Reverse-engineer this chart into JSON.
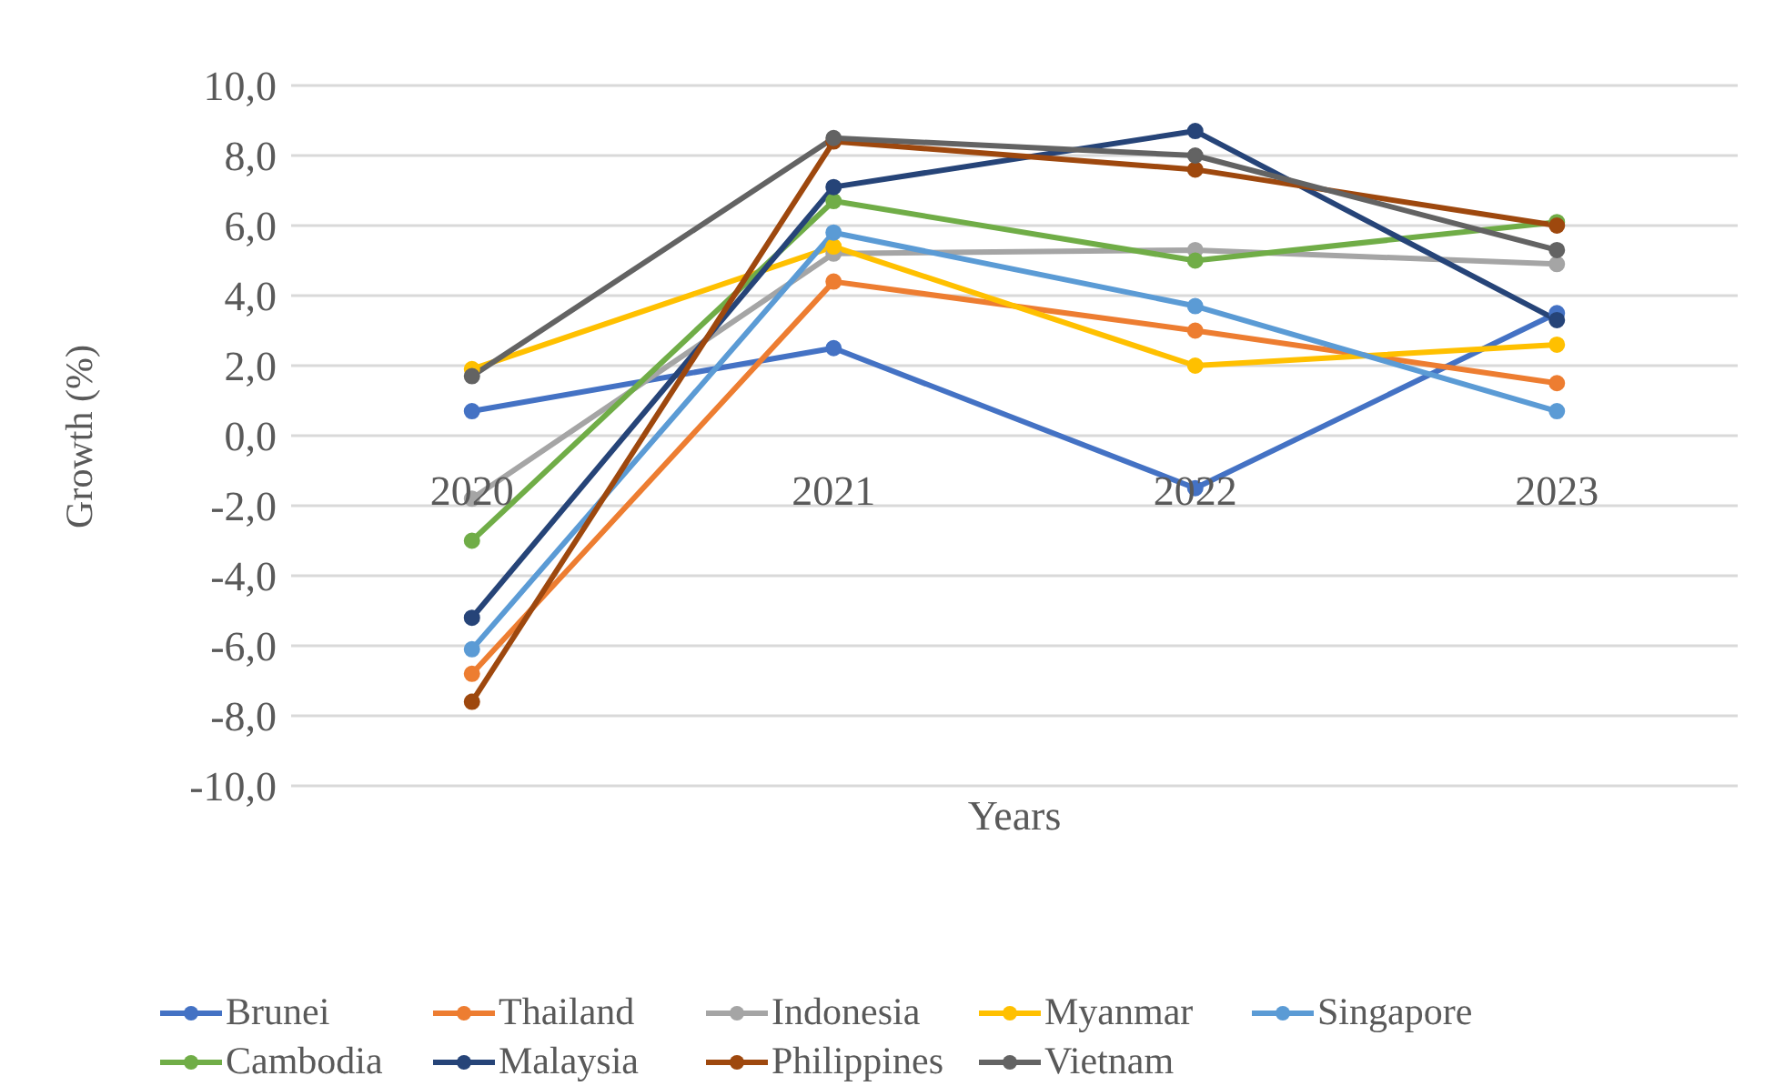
{
  "chart_data": {
    "type": "line",
    "xlabel": "Years",
    "ylabel": "Growth (%)",
    "categories": [
      "2020",
      "2021",
      "2022",
      "2023"
    ],
    "series": [
      {
        "name": "Brunei",
        "color": "#4472c4",
        "values": [
          0.7,
          2.5,
          -1.5,
          3.5
        ]
      },
      {
        "name": "Thailand",
        "color": "#ed7d31",
        "values": [
          -6.8,
          4.4,
          3.0,
          1.5
        ]
      },
      {
        "name": "Indonesia",
        "color": "#a5a5a5",
        "values": [
          -1.8,
          5.2,
          5.3,
          4.9
        ]
      },
      {
        "name": "Myanmar",
        "color": "#ffc000",
        "values": [
          1.9,
          5.4,
          2.0,
          2.6
        ]
      },
      {
        "name": "Singapore",
        "color": "#5b9bd5",
        "values": [
          -6.1,
          5.8,
          3.7,
          0.7
        ]
      },
      {
        "name": "Cambodia",
        "color": "#70ad47",
        "values": [
          -3.0,
          6.7,
          5.0,
          6.1
        ]
      },
      {
        "name": "Malaysia",
        "color": "#264478",
        "values": [
          -5.2,
          7.1,
          8.7,
          3.3
        ]
      },
      {
        "name": "Philippines",
        "color": "#9e480e",
        "values": [
          -7.6,
          8.4,
          7.6,
          6.0
        ]
      },
      {
        "name": "Vietnam",
        "color": "#636363",
        "values": [
          1.7,
          8.5,
          8.0,
          5.3
        ]
      }
    ],
    "ylim": [
      -10,
      10
    ],
    "yticks": [
      {
        "value": -10,
        "label": "-10,0"
      },
      {
        "value": -8,
        "label": "-8,0"
      },
      {
        "value": -6,
        "label": "-6,0"
      },
      {
        "value": -4,
        "label": "-4,0"
      },
      {
        "value": -2,
        "label": "-2,0"
      },
      {
        "value": 0,
        "label": "0,0"
      },
      {
        "value": 2,
        "label": "2,0"
      },
      {
        "value": 4,
        "label": "4,0"
      },
      {
        "value": 6,
        "label": "6,0"
      },
      {
        "value": 8,
        "label": "8,0"
      },
      {
        "value": 10,
        "label": "10,0"
      }
    ],
    "grid": "y",
    "legend": "bottom",
    "marker": "circle",
    "line_style": "solid"
  }
}
